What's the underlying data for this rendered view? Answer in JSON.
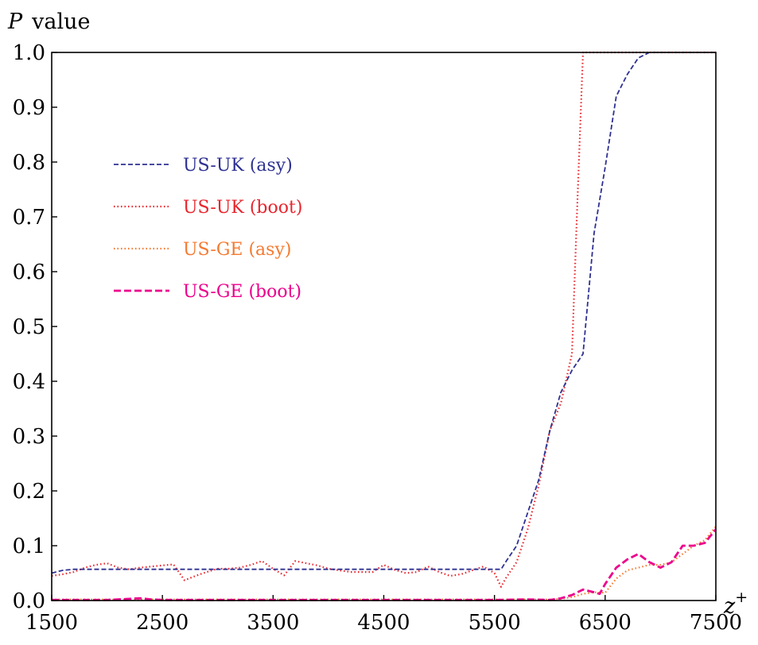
{
  "chart_data": {
    "type": "line",
    "ylabel_italic": "P",
    "ylabel_rest": "value",
    "xlabel_base": "z",
    "xlabel_sup": "+",
    "xlim": [
      1500,
      7500
    ],
    "ylim": [
      0.0,
      1.0
    ],
    "x_ticks": [
      "1500",
      "2500",
      "3500",
      "4500",
      "5500",
      "6500",
      "7500"
    ],
    "y_ticks": [
      "0.0",
      "0.1",
      "0.2",
      "0.3",
      "0.4",
      "0.5",
      "0.6",
      "0.7",
      "0.8",
      "0.9",
      "1.0"
    ],
    "grid": false,
    "legend_position": "upper-left",
    "series": [
      {
        "name": "US-UK (asy)",
        "color": "#2E3192",
        "style": "dashed",
        "x": [
          1500,
          1600,
          1700,
          1800,
          2000,
          2500,
          3000,
          3500,
          4000,
          4500,
          5000,
          5500,
          5560,
          5600,
          5700,
          5800,
          5900,
          6000,
          6100,
          6200,
          6300,
          6400,
          6500,
          6600,
          6700,
          6800,
          6900,
          7000,
          7100,
          7200,
          7300,
          7400,
          7500
        ],
        "y": [
          0.05,
          0.055,
          0.057,
          0.057,
          0.057,
          0.057,
          0.057,
          0.057,
          0.057,
          0.057,
          0.057,
          0.057,
          0.057,
          0.07,
          0.1,
          0.16,
          0.22,
          0.31,
          0.38,
          0.42,
          0.45,
          0.67,
          0.79,
          0.92,
          0.96,
          0.99,
          1.0,
          1.0,
          1.0,
          1.0,
          1.0,
          1.0,
          1.0
        ]
      },
      {
        "name": "US-UK (boot)",
        "color": "#E8252D",
        "style": "dotted",
        "x": [
          1500,
          1600,
          1700,
          1800,
          1900,
          2000,
          2100,
          2200,
          2300,
          2400,
          2500,
          2600,
          2700,
          2800,
          2900,
          3000,
          3100,
          3200,
          3300,
          3400,
          3500,
          3600,
          3700,
          3800,
          3900,
          4000,
          4100,
          4200,
          4300,
          4400,
          4500,
          4600,
          4700,
          4800,
          4900,
          5000,
          5100,
          5200,
          5300,
          5400,
          5500,
          5560,
          5600,
          5700,
          5800,
          5900,
          6000,
          6100,
          6200,
          6250,
          6300,
          6400,
          7000,
          7500
        ],
        "y": [
          0.045,
          0.048,
          0.052,
          0.06,
          0.065,
          0.068,
          0.06,
          0.057,
          0.06,
          0.062,
          0.064,
          0.066,
          0.037,
          0.045,
          0.052,
          0.058,
          0.058,
          0.06,
          0.065,
          0.072,
          0.058,
          0.046,
          0.072,
          0.068,
          0.064,
          0.058,
          0.055,
          0.052,
          0.052,
          0.052,
          0.065,
          0.056,
          0.05,
          0.052,
          0.062,
          0.052,
          0.045,
          0.048,
          0.055,
          0.062,
          0.05,
          0.025,
          0.04,
          0.07,
          0.13,
          0.21,
          0.31,
          0.36,
          0.45,
          0.73,
          1.0,
          1.0,
          1.0,
          1.0
        ]
      },
      {
        "name": "US-GE (asy)",
        "color": "#F47A30",
        "style": "dotted",
        "x": [
          1500,
          2000,
          2500,
          3000,
          3500,
          4000,
          4500,
          5000,
          5500,
          5800,
          6000,
          6100,
          6200,
          6300,
          6400,
          6500,
          6600,
          6700,
          6800,
          6900,
          7000,
          7100,
          7200,
          7300,
          7400,
          7500
        ],
        "y": [
          0.002,
          0.002,
          0.002,
          0.002,
          0.002,
          0.002,
          0.002,
          0.002,
          0.002,
          0.002,
          0.002,
          0.003,
          0.006,
          0.012,
          0.015,
          0.014,
          0.04,
          0.055,
          0.06,
          0.065,
          0.065,
          0.07,
          0.085,
          0.1,
          0.11,
          0.135
        ]
      },
      {
        "name": "US-GE (boot)",
        "color": "#EC008C",
        "style": "bold-dashed",
        "x": [
          1500,
          2000,
          2300,
          2400,
          2500,
          3000,
          3500,
          4000,
          4500,
          5000,
          5500,
          5800,
          6000,
          6100,
          6200,
          6300,
          6400,
          6450,
          6500,
          6600,
          6700,
          6800,
          6900,
          7000,
          7100,
          7200,
          7300,
          7400,
          7500
        ],
        "y": [
          0.001,
          0.001,
          0.004,
          0.002,
          0.001,
          0.001,
          0.001,
          0.001,
          0.001,
          0.001,
          0.001,
          0.002,
          0.001,
          0.004,
          0.01,
          0.02,
          0.015,
          0.012,
          0.03,
          0.06,
          0.075,
          0.085,
          0.07,
          0.06,
          0.07,
          0.1,
          0.1,
          0.105,
          0.13
        ]
      }
    ]
  }
}
